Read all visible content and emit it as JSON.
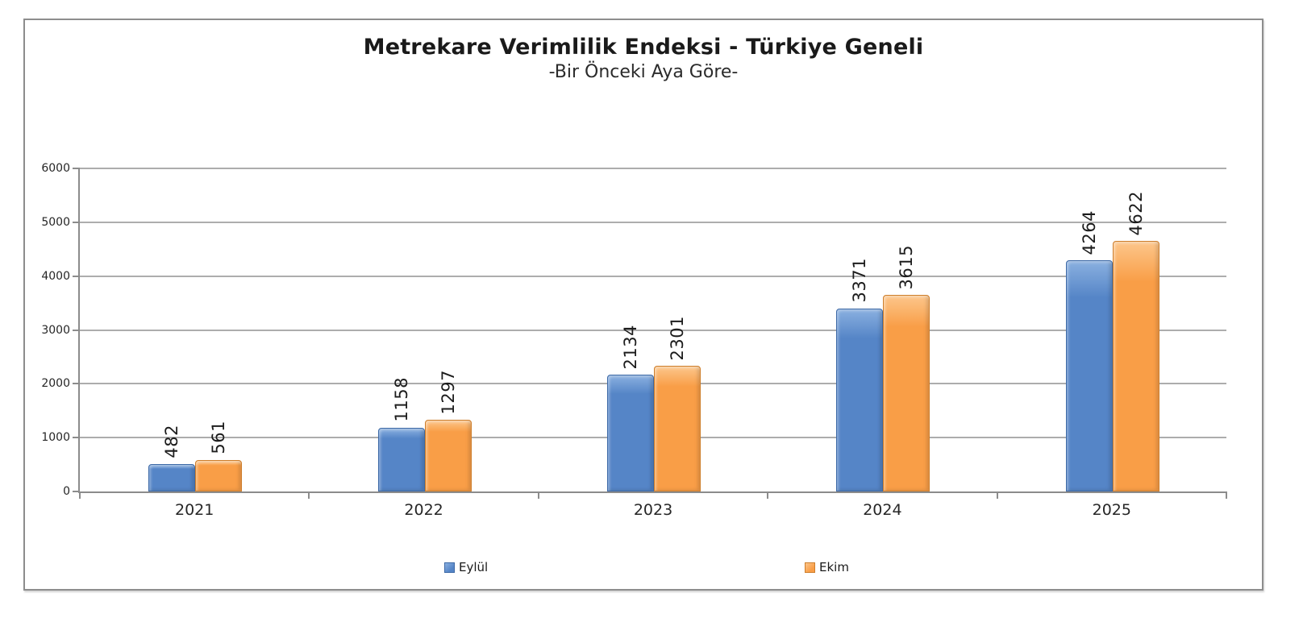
{
  "chart": {
    "title": "Metrekare Verimlilik Endeksi - Türkiye Geneli",
    "subtitle": "-Bir Önceki Aya Göre-"
  },
  "chart_data": {
    "type": "bar",
    "title": "Metrekare Verimlilik Endeksi - Türkiye Geneli",
    "subtitle": "-Bir Önceki Aya Göre-",
    "categories": [
      "2021",
      "2022",
      "2023",
      "2024",
      "2025"
    ],
    "series": [
      {
        "name": "Eylül",
        "values": [
          482,
          1158,
          2134,
          3371,
          4264
        ],
        "color": "#5585C7",
        "color_light": "#8AB0E0",
        "color_edge": "#3D69A6"
      },
      {
        "name": "Ekim",
        "values": [
          561,
          1297,
          2301,
          3615,
          4622
        ],
        "color": "#F99E47",
        "color_light": "#FCC68B",
        "color_edge": "#CE7E2B"
      }
    ],
    "xlabel": "",
    "ylabel": "",
    "ylim": [
      0,
      6000
    ],
    "yticks": [
      0,
      1000,
      2000,
      3000,
      4000,
      5000,
      6000
    ],
    "grid": true,
    "data_labels": "rotated-vertical",
    "legend_position": "bottom"
  }
}
